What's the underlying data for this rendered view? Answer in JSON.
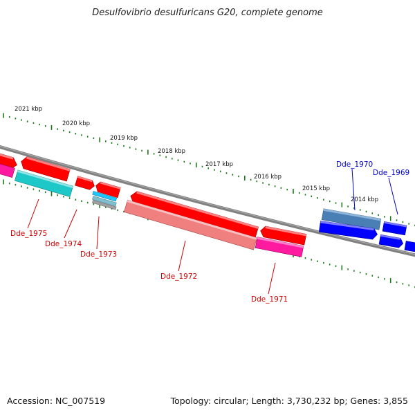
{
  "title": "Desulfovibrio desulfuricans G20, complete genome",
  "footer": {
    "accession": "Accession: NC_007519",
    "summary": "Topology: circular; Length: 3,730,232 bp; Genes: 3,855"
  },
  "colors": {
    "backbone": "#808080",
    "ticks": "#1a7a1a",
    "label_red": "#cc0000",
    "label_blue": "#0000cc"
  },
  "kbp_labels": [
    "2021 kbp",
    "2020 kbp",
    "2019 kbp",
    "2018 kbp",
    "2017 kbp",
    "2016 kbp",
    "2015 kbp",
    "2014 kbp"
  ],
  "gene_labels": [
    {
      "text": "Dde_1975",
      "color": "red"
    },
    {
      "text": "Dde_1974",
      "color": "red"
    },
    {
      "text": "Dde_1973",
      "color": "red"
    },
    {
      "text": "Dde_1972",
      "color": "red"
    },
    {
      "text": "Dde_1971",
      "color": "red"
    },
    {
      "text": "Dde_1970",
      "color": "blue"
    },
    {
      "text": "Dde_1969",
      "color": "blue"
    }
  ]
}
